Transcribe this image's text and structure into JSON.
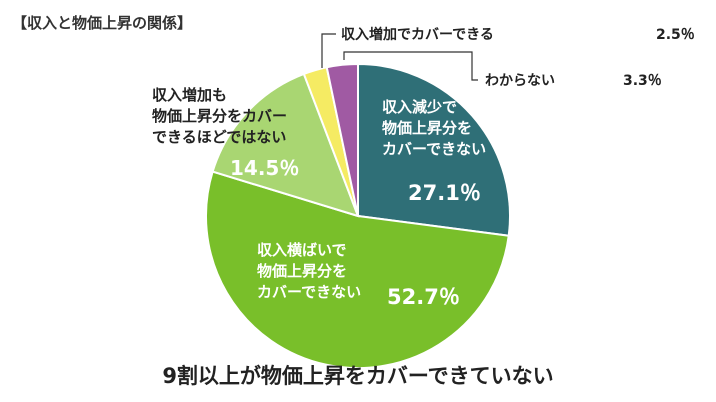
{
  "chart_data": {
    "type": "pie",
    "title": "【収入と物価上昇の関係】",
    "subtitle": "9割以上が物価上昇をカバーできていない",
    "slices": [
      {
        "label": [
          "収入減少で",
          "物価上昇分を",
          "カバーできない"
        ],
        "value": 27.1,
        "value_text": "27.1％",
        "color": "#2f6f77"
      },
      {
        "label": [
          "収入横ばいで",
          "物価上昇分を",
          "カバーできない"
        ],
        "value": 52.7,
        "value_text": "52.7％",
        "color": "#79bf2a"
      },
      {
        "label": [
          "収入増加も",
          "物価上昇分をカバー",
          "できるほどではない"
        ],
        "value": 14.5,
        "value_text": "14.5％",
        "color": "#a9d672"
      },
      {
        "label": [
          "収入増加でカバーできる"
        ],
        "value": 2.5,
        "value_text": "2.5％",
        "color": "#f5eb63"
      },
      {
        "label": [
          "わからない"
        ],
        "value": 3.3,
        "value_text": "3.3％",
        "color": "#a05aa3"
      }
    ]
  }
}
